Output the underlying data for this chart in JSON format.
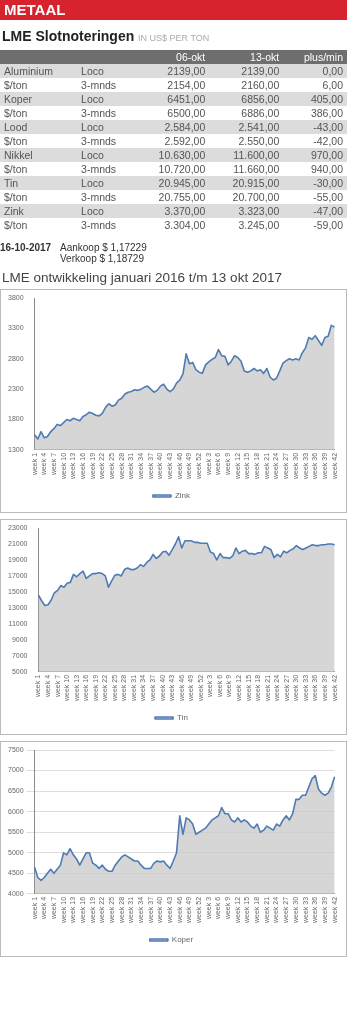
{
  "chart_data": [
    {
      "type": "other",
      "title": "LME Slotnoteringen",
      "subtitle": "IN US$ PER TON",
      "annotations": [
        "METAAL",
        "16-10-2017",
        "Aankoop $ 1,17229",
        "Verkoop $ 1,18729"
      ],
      "categories": [
        null,
        null,
        "06-okt",
        "13-okt",
        "plus/min"
      ],
      "cell_labels": [
        [
          "Aluminium",
          "Loco",
          "2139,00",
          "2139,00",
          "0,00"
        ],
        [
          "$/ton",
          "3-mnds",
          "2154,00",
          "2160,00",
          "6,00"
        ],
        [
          "Koper",
          "Loco",
          "6451,00",
          "6856,00",
          "405,00"
        ],
        [
          "$/ton",
          "3-mnds",
          "6500,00",
          "6886,00",
          "386,00"
        ],
        [
          "Lood",
          "Loco",
          "2.584,00",
          "2.541,00",
          "-43,00"
        ],
        [
          "$/ton",
          "3-mnds",
          "2.592,00",
          "2.550,00",
          "-42,00"
        ],
        [
          "Nikkel",
          "Loco",
          "10.630,00",
          "11.600,00",
          "970,00"
        ],
        [
          "$/ton",
          "3-mnds",
          "10.720,00",
          "11.660,00",
          "940,00"
        ],
        [
          "Tin",
          "Loco",
          "20.945,00",
          "20.915,00",
          "-30,00"
        ],
        [
          "$/ton",
          "3-mnds",
          "20.755,00",
          "20.700,00",
          "-55,00"
        ],
        [
          "Zink",
          "Loco",
          "3.370,00",
          "3.323,00",
          "-47,00"
        ],
        [
          "$/ton",
          "3-mnds",
          "3.304,00",
          "3.245,00",
          "-59,00"
        ]
      ]
    },
    {
      "type": "area",
      "title": "LME ontwikkeling januari 2016 t/m 13 okt 2017",
      "legend": "bottom",
      "grid": false,
      "categories": [
        "week 1",
        null,
        null,
        "week 4",
        null,
        null,
        "week 7",
        null,
        null,
        "week 10",
        null,
        null,
        "week 13",
        null,
        null,
        "week 16",
        null,
        null,
        "week 19",
        null,
        null,
        "week 22",
        null,
        null,
        "week 25",
        null,
        null,
        "week 28",
        null,
        null,
        "week 31",
        null,
        null,
        "week 34",
        null,
        null,
        "week 37",
        null,
        null,
        "week 40",
        null,
        null,
        "week 43",
        null,
        null,
        "week 46",
        null,
        null,
        "week 49",
        null,
        null,
        "week 52",
        null,
        null,
        "week 3",
        null,
        null,
        "week 6",
        null,
        null,
        "week 9",
        null,
        null,
        "week 12",
        null,
        null,
        "week 15",
        null,
        null,
        "week 18",
        null,
        null,
        "week 21",
        null,
        null,
        "week 24",
        null,
        null,
        "week 27",
        null,
        null,
        "week 30",
        null,
        null,
        "week 33",
        null,
        null,
        "week 36",
        null,
        null,
        "week 39",
        null,
        null,
        "week 42"
      ],
      "ylim": [
        1300,
        3800
      ],
      "yticks": [
        1300,
        1800,
        2300,
        2800,
        3300,
        3800
      ],
      "series": [
        {
          "name": "Zink",
          "color": "#4f7bb5",
          "values": [
            1550,
            1480,
            1600,
            1500,
            1520,
            1600,
            1650,
            1720,
            1700,
            1750,
            1800,
            1780,
            1820,
            1800,
            1780,
            1850,
            1880,
            1920,
            1900,
            1870,
            1860,
            1900,
            2000,
            2060,
            2020,
            2040,
            2120,
            2150,
            2220,
            2250,
            2260,
            2290,
            2280,
            2300,
            2330,
            2350,
            2300,
            2250,
            2280,
            2350,
            2380,
            2300,
            2260,
            2300,
            2400,
            2450,
            2550,
            2880,
            2720,
            2740,
            2620,
            2580,
            2560,
            2700,
            2750,
            2790,
            2820,
            2950,
            2850,
            2840,
            2700,
            2760,
            2850,
            2820,
            2760,
            2600,
            2580,
            2600,
            2640,
            2600,
            2620,
            2560,
            2640,
            2500,
            2450,
            2480,
            2600,
            2730,
            2770,
            2800,
            2780,
            2800,
            2780,
            2900,
            2980,
            3150,
            3120,
            3180,
            3100,
            3020,
            3150,
            3170,
            3350,
            3320
          ]
        }
      ]
    },
    {
      "type": "area",
      "legend": "bottom",
      "grid": false,
      "categories": [
        "week 1",
        null,
        null,
        "week 4",
        null,
        null,
        "week 7",
        null,
        null,
        "week 10",
        null,
        null,
        "week 13",
        null,
        null,
        "week 16",
        null,
        null,
        "week 19",
        null,
        null,
        "week 22",
        null,
        null,
        "week 25",
        null,
        null,
        "week 28",
        null,
        null,
        "week 31",
        null,
        null,
        "week 34",
        null,
        null,
        "week 37",
        null,
        null,
        "week 40",
        null,
        null,
        "week 43",
        null,
        null,
        "week 46",
        null,
        null,
        "week 49",
        null,
        null,
        "week 52",
        null,
        null,
        "week 3",
        null,
        null,
        "week 6",
        null,
        null,
        "week 9",
        null,
        null,
        "week 12",
        null,
        null,
        "week 15",
        null,
        null,
        "week 18",
        null,
        null,
        "week 21",
        null,
        null,
        "week 24",
        null,
        null,
        "week 27",
        null,
        null,
        "week 30",
        null,
        null,
        "week 33",
        null,
        null,
        "week 36",
        null,
        null,
        "week 39",
        null,
        null,
        "week 42"
      ],
      "ylim": [
        5000,
        23000
      ],
      "yticks": [
        5000,
        7000,
        9000,
        11000,
        13000,
        15000,
        17000,
        19000,
        21000,
        23000
      ],
      "series": [
        {
          "name": "Tin",
          "color": "#4f7bb5",
          "values": [
            14600,
            13900,
            13300,
            13400,
            14000,
            14900,
            15200,
            15800,
            15600,
            16100,
            16200,
            17200,
            16900,
            17300,
            17600,
            16700,
            17000,
            17300,
            17300,
            17400,
            17300,
            17000,
            15600,
            16400,
            17100,
            17200,
            17000,
            17800,
            18000,
            17800,
            17800,
            18000,
            18400,
            18200,
            18700,
            19000,
            19700,
            19200,
            19500,
            20000,
            20100,
            19600,
            20300,
            21000,
            21900,
            20500,
            21400,
            21400,
            21400,
            21200,
            21200,
            21100,
            21100,
            21100,
            20000,
            19800,
            19000,
            19800,
            19300,
            19300,
            19200,
            19500,
            20500,
            19800,
            20100,
            20200,
            19800,
            19800,
            19700,
            19900,
            19900,
            20700,
            20500,
            20300,
            19300,
            19700,
            19400,
            20100,
            19900,
            20200,
            20400,
            20800,
            20500,
            20300,
            20500,
            20700,
            20900,
            20800,
            20800,
            20900,
            20900,
            21000,
            21000,
            20900
          ]
        }
      ]
    },
    {
      "type": "area",
      "legend": "bottom",
      "grid": "y",
      "categories": [
        "week 1",
        null,
        null,
        "week 4",
        null,
        null,
        "week 7",
        null,
        null,
        "week 10",
        null,
        null,
        "week 13",
        null,
        null,
        "week 16",
        null,
        null,
        "week 19",
        null,
        null,
        "week 22",
        null,
        null,
        "week 25",
        null,
        null,
        "week 28",
        null,
        null,
        "week 31",
        null,
        null,
        "week 34",
        null,
        null,
        "week 37",
        null,
        null,
        "week 40",
        null,
        null,
        "week 43",
        null,
        null,
        "week 46",
        null,
        null,
        "week 49",
        null,
        null,
        "week 52",
        null,
        null,
        "week 3",
        null,
        null,
        "week 6",
        null,
        null,
        "week 9",
        null,
        null,
        "week 12",
        null,
        null,
        "week 15",
        null,
        null,
        "week 18",
        null,
        null,
        "week 21",
        null,
        null,
        "week 24",
        null,
        null,
        "week 27",
        null,
        null,
        "week 30",
        null,
        null,
        "week 33",
        null,
        null,
        "week 36",
        null,
        null,
        "week 39",
        null,
        null,
        "week 42"
      ],
      "ylim": [
        4000,
        7500
      ],
      "yticks": [
        4000,
        4500,
        5000,
        5500,
        6000,
        6500,
        7000,
        7500
      ],
      "series": [
        {
          "name": "Koper",
          "color": "#4f7bb5",
          "values": [
            4650,
            4400,
            4330,
            4400,
            4500,
            4600,
            4500,
            4600,
            4700,
            5000,
            4950,
            5100,
            4950,
            4850,
            4700,
            4850,
            5000,
            5000,
            4750,
            4700,
            4620,
            4700,
            4600,
            4550,
            4550,
            4700,
            4800,
            4900,
            4950,
            4900,
            4850,
            4800,
            4800,
            4700,
            4620,
            4620,
            4620,
            4750,
            4800,
            4780,
            4800,
            4700,
            4620,
            4800,
            5000,
            5900,
            5450,
            5850,
            5800,
            5700,
            5450,
            5500,
            5550,
            5600,
            5700,
            5800,
            5850,
            5900,
            6100,
            5950,
            5950,
            5800,
            5750,
            5850,
            5750,
            5800,
            5750,
            5650,
            5600,
            5700,
            5500,
            5550,
            5650,
            5600,
            5550,
            5700,
            5650,
            5800,
            5900,
            5800,
            5950,
            6300,
            6300,
            6400,
            6400,
            6600,
            6800,
            6880,
            6550,
            6450,
            6400,
            6450,
            6600,
            6850
          ]
        }
      ]
    }
  ]
}
